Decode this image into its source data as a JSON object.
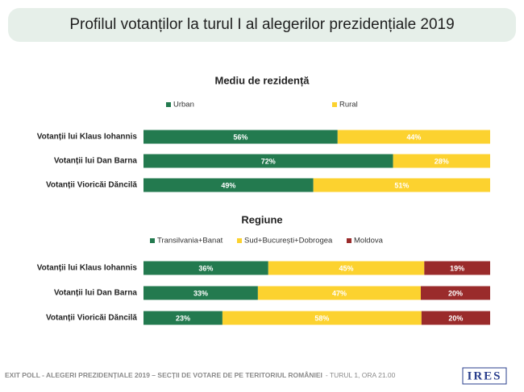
{
  "title": "Profilul votanților la turul I al alegerilor prezidențiale 2019",
  "chart_data": [
    {
      "type": "bar",
      "orientation": "horizontal",
      "stacked": true,
      "title": "Mediu de rezidență",
      "categories": [
        "Votanții lui Klaus Iohannis",
        "Votanții lui Dan Barna",
        "Votanții Vioricăi Dăncilă"
      ],
      "series": [
        {
          "name": "Urban",
          "color": "#237a4f",
          "values": [
            56,
            72,
            49
          ],
          "value_labels": [
            "56%",
            "72%",
            "49%"
          ]
        },
        {
          "name": "Rural",
          "color": "#fcd22f",
          "values": [
            44,
            28,
            51
          ],
          "value_labels": [
            "44%",
            "28%",
            "51%"
          ]
        }
      ]
    },
    {
      "type": "bar",
      "orientation": "horizontal",
      "stacked": true,
      "title": "Regiune",
      "categories": [
        "Votanții lui Klaus Iohannis",
        "Votanții lui Dan Barna",
        "Votanții Vioricăi Dăncilă"
      ],
      "series": [
        {
          "name": "Transilvania+Banat",
          "color": "#237a4f",
          "values": [
            36,
            33,
            23
          ],
          "value_labels": [
            "36%",
            "33%",
            "23%"
          ]
        },
        {
          "name": "Sud+București+Dobrogea",
          "color": "#fcd22f",
          "values": [
            45,
            47,
            58
          ],
          "value_labels": [
            "45%",
            "47%",
            "58%"
          ]
        },
        {
          "name": "Moldova",
          "color": "#9a2b2b",
          "values": [
            19,
            20,
            20
          ],
          "value_labels": [
            "19%",
            "20%",
            "20%"
          ]
        }
      ]
    }
  ],
  "footer": {
    "main": "EXIT POLL - ALEGERI PREZIDENȚIALE 2019 – SECȚII DE VOTARE DE PE TERITORIUL ROMÂNIEI",
    "sub": "- TURUL 1, ORA 21.00",
    "logo": "IRES"
  }
}
